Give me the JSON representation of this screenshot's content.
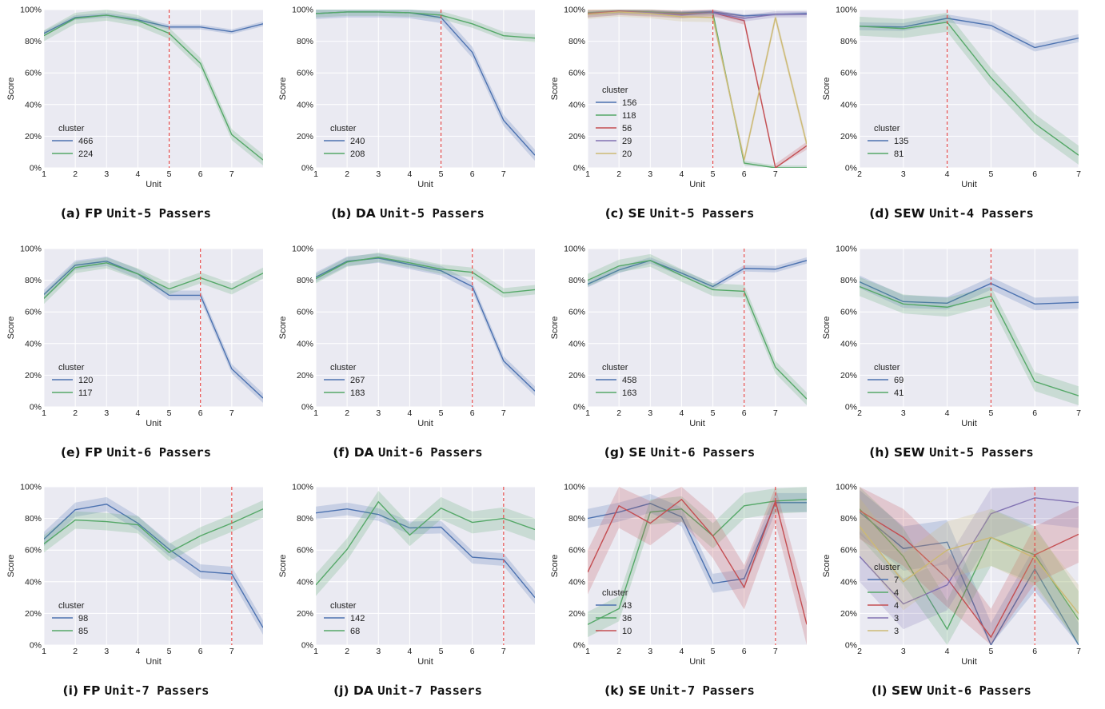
{
  "colors": {
    "plot_bg": "#eaeaf2",
    "grid": "#ffffff",
    "vline": "#e8413f",
    "series": [
      "#4c72b0",
      "#55a868",
      "#c44e52",
      "#8172b2",
      "#ccb974"
    ]
  },
  "chart_data": [
    {
      "id": "a",
      "type": "line",
      "caption_label": "(a)",
      "caption_abbr": "FP",
      "caption_mono": "Unit-5 Passers",
      "xlabel": "Unit",
      "ylabel": "Score",
      "xlim": [
        1,
        8
      ],
      "xticks": [
        1,
        2,
        3,
        4,
        5,
        6,
        7
      ],
      "ylim": [
        0,
        100
      ],
      "yticks": [
        "0%",
        "20%",
        "40%",
        "60%",
        "80%",
        "100%"
      ],
      "vline": 5,
      "legend_title": "cluster",
      "x": [
        1,
        2,
        3,
        4,
        5,
        6,
        7,
        8
      ],
      "series": [
        {
          "name": "466",
          "values": [
            85,
            95,
            96.5,
            93.5,
            89,
            89,
            86,
            91
          ],
          "band": 1.5
        },
        {
          "name": "224",
          "values": [
            83.5,
            94.5,
            96.5,
            93,
            85,
            66,
            21,
            5
          ],
          "band": 3.5
        }
      ]
    },
    {
      "id": "b",
      "type": "line",
      "caption_label": "(b)",
      "caption_abbr": "DA",
      "caption_mono": "Unit-5 Passers",
      "xlabel": "Unit",
      "ylabel": "Score",
      "xlim": [
        1,
        8
      ],
      "xticks": [
        1,
        2,
        3,
        4,
        5,
        6,
        7
      ],
      "ylim": [
        0,
        100
      ],
      "yticks": [
        "0%",
        "20%",
        "40%",
        "60%",
        "80%",
        "100%"
      ],
      "vline": 5,
      "legend_title": "cluster",
      "x": [
        1,
        2,
        3,
        4,
        5,
        6,
        7,
        8
      ],
      "series": [
        {
          "name": "240",
          "values": [
            97.5,
            98.5,
            98.5,
            98,
            95,
            73,
            30,
            8
          ],
          "band": 3.5
        },
        {
          "name": "208",
          "values": [
            97.5,
            98.5,
            98.5,
            98,
            96.5,
            91,
            83.5,
            82
          ],
          "band": 2.5
        }
      ]
    },
    {
      "id": "c",
      "type": "line",
      "caption_label": "(c)",
      "caption_abbr": "SE",
      "caption_mono": "Unit-5 Passers",
      "xlabel": "Unit",
      "ylabel": "Score",
      "xlim": [
        1,
        8
      ],
      "xticks": [
        1,
        2,
        3,
        4,
        5,
        6,
        7
      ],
      "ylim": [
        0,
        100
      ],
      "yticks": [
        "0%",
        "20%",
        "40%",
        "60%",
        "80%",
        "100%"
      ],
      "vline": 5,
      "legend_title": "cluster",
      "x": [
        1,
        2,
        3,
        4,
        5,
        6,
        7,
        8
      ],
      "series": [
        {
          "name": "156",
          "values": [
            97.5,
            99,
            98.5,
            98,
            98.5,
            96,
            97,
            97.5
          ],
          "band": 1
        },
        {
          "name": "118",
          "values": [
            98,
            99,
            98.5,
            97.5,
            98,
            3,
            0,
            0
          ],
          "band": 1.5
        },
        {
          "name": "56",
          "values": [
            97.5,
            99,
            98,
            97,
            98,
            93,
            0,
            14
          ],
          "band": 2.5
        },
        {
          "name": "29",
          "values": [
            97,
            98.5,
            98,
            96.5,
            98,
            94.5,
            97,
            97
          ],
          "band": 2
        },
        {
          "name": "20",
          "values": [
            97,
            98.5,
            97.5,
            95.5,
            95,
            5,
            95,
            15
          ],
          "band": 3
        }
      ]
    },
    {
      "id": "d",
      "type": "line",
      "caption_label": "(d)",
      "caption_abbr": "SEW",
      "caption_mono": "Unit-4 Passers",
      "xlabel": "Unit",
      "ylabel": "Score",
      "xlim": [
        2,
        7
      ],
      "xticks": [
        2,
        3,
        4,
        5,
        6,
        7
      ],
      "ylim": [
        0,
        100
      ],
      "yticks": [
        "0%",
        "20%",
        "40%",
        "60%",
        "80%",
        "100%"
      ],
      "vline": 4,
      "legend_title": "cluster",
      "x": [
        2,
        3,
        4,
        5,
        6,
        7
      ],
      "series": [
        {
          "name": "135",
          "values": [
            89.5,
            89,
            94.5,
            90,
            76,
            82
          ],
          "band": 2.5
        },
        {
          "name": "81",
          "values": [
            89.5,
            88,
            92,
            57,
            28,
            8
          ],
          "band": 6
        }
      ]
    },
    {
      "id": "e",
      "type": "line",
      "caption_label": "(e)",
      "caption_abbr": "FP",
      "caption_mono": "Unit-6 Passers",
      "xlabel": "Unit",
      "ylabel": "Score",
      "xlim": [
        1,
        8
      ],
      "xticks": [
        1,
        2,
        3,
        4,
        5,
        6,
        7
      ],
      "ylim": [
        0,
        100
      ],
      "yticks": [
        "0%",
        "20%",
        "40%",
        "60%",
        "80%",
        "100%"
      ],
      "vline": 6,
      "legend_title": "cluster",
      "x": [
        1,
        2,
        3,
        4,
        5,
        6,
        7,
        8
      ],
      "series": [
        {
          "name": "120",
          "values": [
            71,
            89.5,
            92,
            84,
            70.5,
            70.5,
            24,
            5.5
          ],
          "band": 3
        },
        {
          "name": "117",
          "values": [
            68.5,
            88,
            91,
            84,
            74.5,
            81.5,
            74.5,
            84.5
          ],
          "band": 3.5
        }
      ]
    },
    {
      "id": "f",
      "type": "line",
      "caption_label": "(f)",
      "caption_abbr": "DA",
      "caption_mono": "Unit-6 Passers",
      "xlabel": "Unit",
      "ylabel": "Score",
      "xlim": [
        1,
        8
      ],
      "xticks": [
        1,
        2,
        3,
        4,
        5,
        6,
        7
      ],
      "ylim": [
        0,
        100
      ],
      "yticks": [
        "0%",
        "20%",
        "40%",
        "60%",
        "80%",
        "100%"
      ],
      "vline": 6,
      "legend_title": "cluster",
      "x": [
        1,
        2,
        3,
        4,
        5,
        6,
        7,
        8
      ],
      "series": [
        {
          "name": "267",
          "values": [
            82,
            92,
            94,
            90,
            86,
            76,
            29,
            10
          ],
          "band": 3
        },
        {
          "name": "183",
          "values": [
            81,
            91.5,
            94.5,
            91,
            87,
            85,
            72,
            74
          ],
          "band": 3
        }
      ]
    },
    {
      "id": "g",
      "type": "line",
      "caption_label": "(g)",
      "caption_abbr": "SE",
      "caption_mono": "Unit-6 Passers",
      "xlabel": "Unit",
      "ylabel": "Score",
      "xlim": [
        1,
        8
      ],
      "xticks": [
        1,
        2,
        3,
        4,
        5,
        6,
        7
      ],
      "ylim": [
        0,
        100
      ],
      "yticks": [
        "0%",
        "20%",
        "40%",
        "60%",
        "80%",
        "100%"
      ],
      "vline": 6,
      "legend_title": "cluster",
      "x": [
        1,
        2,
        3,
        4,
        5,
        6,
        7,
        8
      ],
      "series": [
        {
          "name": "458",
          "values": [
            77.5,
            86.5,
            92.5,
            84.5,
            76,
            87.5,
            87,
            92.5
          ],
          "band": 2
        },
        {
          "name": "163",
          "values": [
            80,
            89,
            92.5,
            83,
            74,
            73,
            25,
            5
          ],
          "band": 4
        }
      ]
    },
    {
      "id": "h",
      "type": "line",
      "caption_label": "(h)",
      "caption_abbr": "SEW",
      "caption_mono": "Unit-5 Passers",
      "xlabel": "Unit",
      "ylabel": "Score",
      "xlim": [
        2,
        7
      ],
      "xticks": [
        2,
        3,
        4,
        5,
        6,
        7
      ],
      "ylim": [
        0,
        100
      ],
      "yticks": [
        "0%",
        "20%",
        "40%",
        "60%",
        "80%",
        "100%"
      ],
      "vline": 5,
      "legend_title": "cluster",
      "x": [
        2,
        3,
        4,
        5,
        6,
        7
      ],
      "series": [
        {
          "name": "69",
          "values": [
            79,
            66.5,
            65.5,
            78,
            65,
            66
          ],
          "band": 4
        },
        {
          "name": "41",
          "values": [
            76,
            65,
            63,
            70,
            16,
            7
          ],
          "band": 6
        }
      ]
    },
    {
      "id": "i",
      "type": "line",
      "caption_label": "(i)",
      "caption_abbr": "FP",
      "caption_mono": "Unit-7 Passers",
      "xlabel": "Unit",
      "ylabel": "Score",
      "xlim": [
        1,
        8
      ],
      "xticks": [
        1,
        2,
        3,
        4,
        5,
        6,
        7
      ],
      "ylim": [
        0,
        100
      ],
      "yticks": [
        "0%",
        "20%",
        "40%",
        "60%",
        "80%",
        "100%"
      ],
      "vline": 7,
      "legend_title": "cluster",
      "x": [
        1,
        2,
        3,
        4,
        5,
        6,
        7,
        8
      ],
      "series": [
        {
          "name": "98",
          "values": [
            67,
            85.5,
            89,
            77,
            60.5,
            46.5,
            45,
            11
          ],
          "band": 4.5
        },
        {
          "name": "85",
          "values": [
            64,
            79,
            78,
            76,
            58.5,
            69,
            77,
            86
          ],
          "band": 5.5
        }
      ]
    },
    {
      "id": "j",
      "type": "line",
      "caption_label": "(j)",
      "caption_abbr": "DA",
      "caption_mono": "Unit-7 Passers",
      "xlabel": "Unit",
      "ylabel": "Score",
      "xlim": [
        1,
        8
      ],
      "xticks": [
        1,
        2,
        3,
        4,
        5,
        6,
        7
      ],
      "ylim": [
        0,
        100
      ],
      "yticks": [
        "0%",
        "20%",
        "40%",
        "60%",
        "80%",
        "100%"
      ],
      "vline": 7,
      "legend_title": "cluster",
      "x": [
        1,
        2,
        3,
        4,
        5,
        6,
        7,
        8
      ],
      "series": [
        {
          "name": "142",
          "values": [
            83.5,
            86,
            82.5,
            74,
            74.5,
            55.5,
            54,
            30
          ],
          "band": 4
        },
        {
          "name": "68",
          "values": [
            38,
            60.5,
            90.5,
            69.5,
            86.5,
            77.5,
            80,
            73
          ],
          "band": 7
        }
      ]
    },
    {
      "id": "k",
      "type": "line",
      "caption_label": "(k)",
      "caption_abbr": "SE",
      "caption_mono": "Unit-7 Passers",
      "xlabel": "Unit",
      "ylabel": "Score",
      "xlim": [
        1,
        8
      ],
      "xticks": [
        1,
        2,
        3,
        4,
        5,
        6,
        7
      ],
      "ylim": [
        0,
        100
      ],
      "yticks": [
        "0%",
        "20%",
        "40%",
        "60%",
        "80%",
        "100%"
      ],
      "vline": 7,
      "legend_title": "cluster",
      "x": [
        1,
        2,
        3,
        4,
        5,
        6,
        7,
        8
      ],
      "series": [
        {
          "name": "43",
          "values": [
            80,
            84,
            89.5,
            81,
            39,
            42,
            90,
            90
          ],
          "band": 6
        },
        {
          "name": "36",
          "values": [
            13,
            23,
            84,
            86,
            69,
            88,
            91,
            92
          ],
          "band": 8
        },
        {
          "name": "10",
          "values": [
            46,
            88,
            77,
            92,
            69,
            36.5,
            91,
            13
          ],
          "band": 14
        }
      ]
    },
    {
      "id": "l",
      "type": "line",
      "caption_label": "(l)",
      "caption_abbr": "SEW",
      "caption_mono": "Unit-6 Passers",
      "xlabel": "Unit",
      "ylabel": "Score",
      "xlim": [
        2,
        7
      ],
      "xticks": [
        2,
        3,
        4,
        5,
        6,
        7
      ],
      "ylim": [
        0,
        100
      ],
      "yticks": [
        "0%",
        "20%",
        "40%",
        "60%",
        "80%",
        "100%"
      ],
      "vline": 6,
      "legend_title": "cluster",
      "x": [
        2,
        3,
        4,
        5,
        6,
        7
      ],
      "series": [
        {
          "name": "7",
          "values": [
            84,
            61,
            65,
            0,
            48,
            0
          ],
          "band": 14
        },
        {
          "name": "4",
          "values": [
            86,
            56,
            10,
            68,
            57,
            16
          ],
          "band": 18
        },
        {
          "name": "4",
          "values": [
            85,
            68,
            42,
            5,
            57,
            70
          ],
          "band": 18
        },
        {
          "name": "3",
          "values": [
            56,
            26,
            38,
            83,
            93,
            90
          ],
          "band": 16
        },
        {
          "name": "3",
          "values": [
            75,
            40,
            60,
            68,
            55,
            20
          ],
          "band": 18
        }
      ]
    }
  ]
}
